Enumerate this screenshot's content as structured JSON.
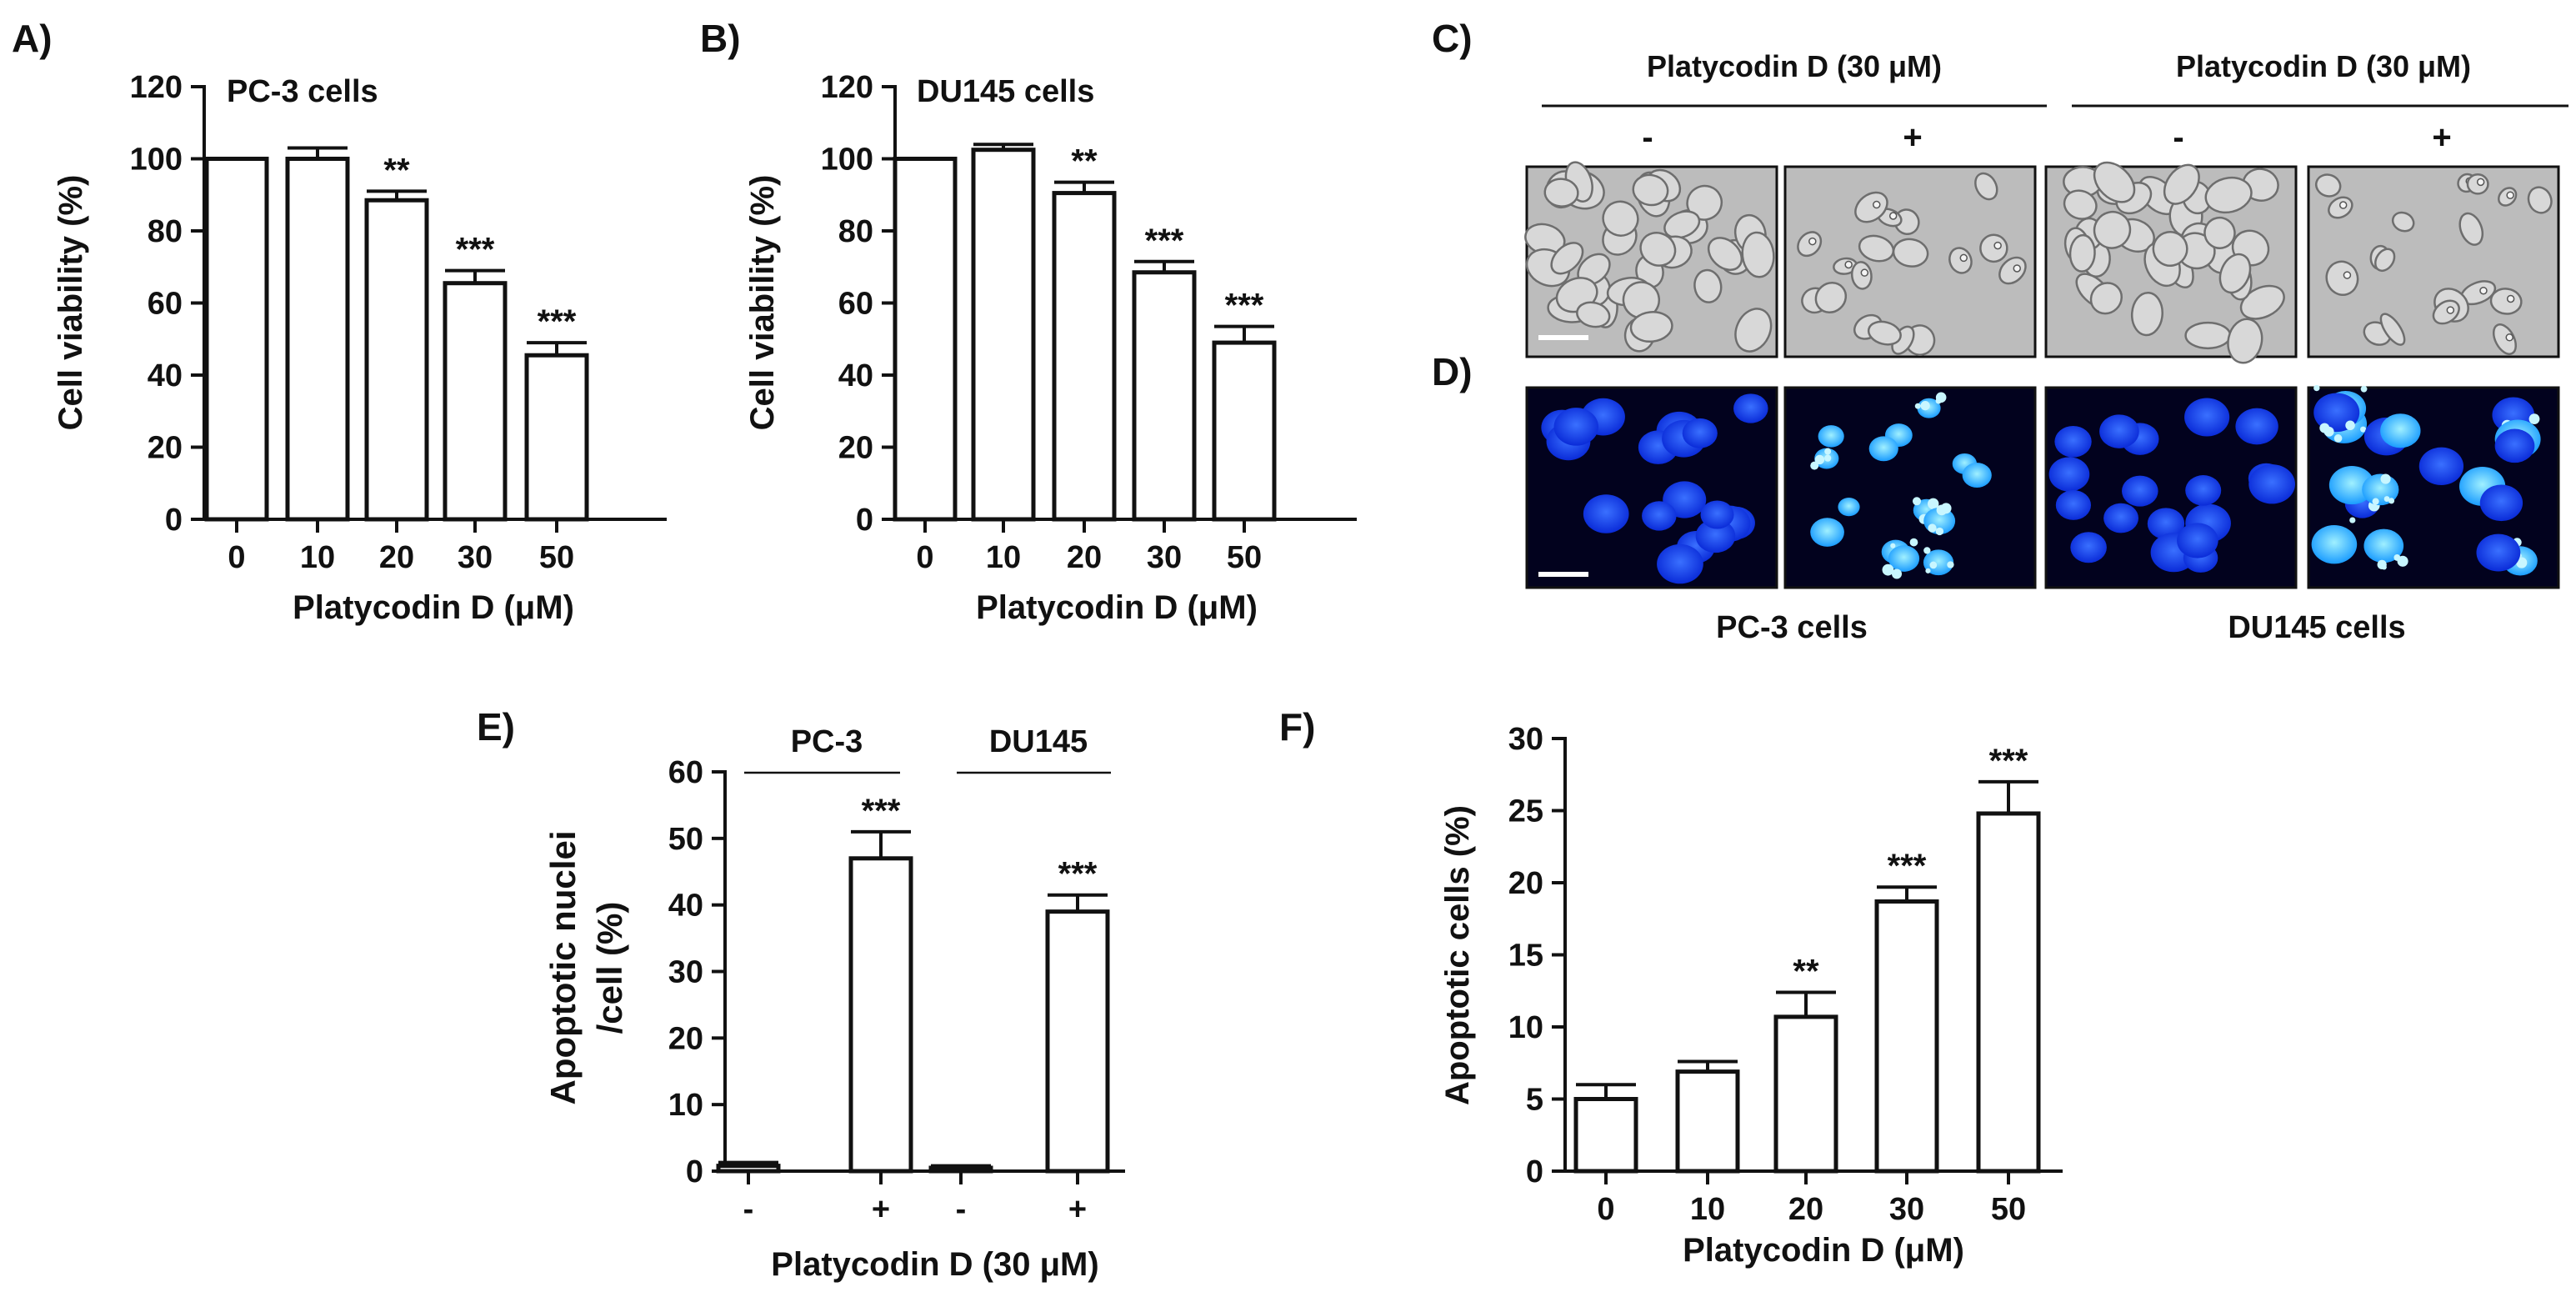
{
  "colors": {
    "ink": "#111111",
    "bar_fill": "#ffffff",
    "micro_dark": "#7a7a7a",
    "micro_light": "#cfcfcf",
    "nuclei_bg": "#02021e",
    "nuclei_blue": "#1040ff",
    "nuclei_cyan": "#38c8ff"
  },
  "panels": {
    "a": {
      "letter": "A)",
      "cell_line": "PC-3 cells"
    },
    "b": {
      "letter": "B)",
      "cell_line": "DU145 cells"
    },
    "c": {
      "letter": "C)",
      "groups": [
        {
          "header": "Platycodin D (30 μM)",
          "minus": "-",
          "plus": "+"
        },
        {
          "header": "Platycodin D (30 μM)",
          "minus": "-",
          "plus": "+"
        }
      ],
      "images": [
        "phase-contrast-icon",
        "phase-contrast-icon",
        "phase-contrast-icon",
        "phase-contrast-icon"
      ]
    },
    "d": {
      "letter": "D)",
      "captions": [
        "PC-3 cells",
        "DU145 cells"
      ],
      "images": [
        "dapi-nuclei-icon",
        "dapi-nuclei-icon",
        "dapi-nuclei-icon",
        "dapi-nuclei-icon"
      ]
    },
    "e": {
      "letter": "E)",
      "group_labels": [
        "PC-3",
        "DU145"
      ]
    },
    "f": {
      "letter": "F)"
    }
  },
  "chart_data": [
    {
      "id": "a",
      "type": "bar",
      "categories": [
        "0",
        "10",
        "20",
        "30",
        "50"
      ],
      "values": [
        100,
        100,
        88.5,
        65.5,
        45.5
      ],
      "errors": [
        0,
        3,
        2.5,
        3.5,
        3.5
      ],
      "significance": [
        "",
        "",
        "**",
        "***",
        "***"
      ],
      "ylabel": "Cell viability (%)",
      "xlabel": "Platycodin D (μM)",
      "ylim": [
        0,
        120
      ],
      "yticks": [
        "0",
        "20",
        "40",
        "60",
        "80",
        "100",
        "120"
      ]
    },
    {
      "id": "b",
      "type": "bar",
      "categories": [
        "0",
        "10",
        "20",
        "30",
        "50"
      ],
      "values": [
        100,
        102.5,
        90.5,
        68.5,
        49
      ],
      "errors": [
        0,
        1.5,
        3,
        3,
        4.5
      ],
      "significance": [
        "",
        "",
        "**",
        "***",
        "***"
      ],
      "ylabel": "Cell viability (%)",
      "xlabel": "Platycodin D (μM)",
      "ylim": [
        0,
        120
      ],
      "yticks": [
        "0",
        "20",
        "40",
        "60",
        "80",
        "100",
        "120"
      ]
    },
    {
      "id": "e",
      "type": "bar",
      "categories": [
        "-",
        "+",
        "-",
        "+"
      ],
      "values": [
        0.8,
        47,
        0.5,
        39
      ],
      "errors": [
        0.5,
        4,
        0.3,
        2.5
      ],
      "significance": [
        "",
        "***",
        "",
        "***"
      ],
      "ylabel_lines": [
        "Apoptotic nuclei",
        "/cell (%)"
      ],
      "xlabel": "Platycodin D (30 μM)",
      "ylim": [
        0,
        60
      ],
      "yticks": [
        "0",
        "10",
        "20",
        "30",
        "40",
        "50",
        "60"
      ]
    },
    {
      "id": "f",
      "type": "bar",
      "categories": [
        "0",
        "10",
        "20",
        "30",
        "50"
      ],
      "values": [
        5,
        6.9,
        10.7,
        18.7,
        24.8
      ],
      "errors": [
        1,
        0.7,
        1.7,
        1,
        2.2
      ],
      "significance": [
        "",
        "",
        "**",
        "***",
        "***"
      ],
      "ylabel": "Apoptotic cells (%)",
      "xlabel": "Platycodin D (μM)",
      "ylim": [
        0,
        30
      ],
      "yticks": [
        "0",
        "5",
        "10",
        "15",
        "20",
        "25",
        "30"
      ]
    }
  ]
}
